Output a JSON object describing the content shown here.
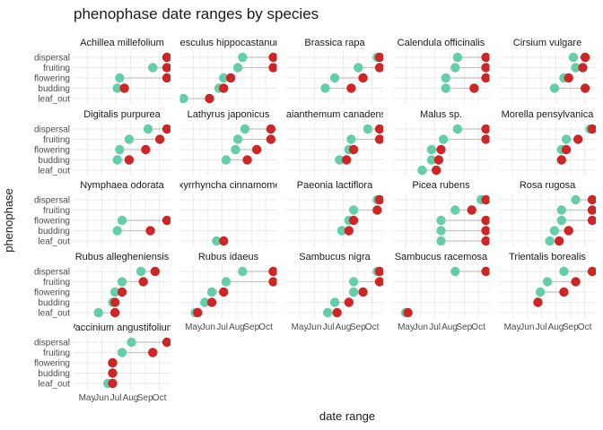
{
  "chart_data": {
    "type": "scatter",
    "subtype": "dumbbell-faceted",
    "title": "phenophase date ranges by species",
    "xlabel": "date range",
    "ylabel": "phenophase",
    "phenophases": [
      "leaf_out",
      "budding",
      "flowering",
      "fruiting",
      "dispersal"
    ],
    "x_ticks": [
      {
        "label": "May",
        "doy": 121
      },
      {
        "label": "Jun",
        "doy": 152
      },
      {
        "label": "Jul",
        "doy": 182
      },
      {
        "label": "Aug",
        "doy": 213
      },
      {
        "label": "Sep",
        "doy": 244
      },
      {
        "label": "Oct",
        "doy": 274
      }
    ],
    "xlim_doy": [
      100,
      290
    ],
    "x_units": "day of year",
    "series": [
      {
        "key": "start",
        "color": "#66cdaa"
      },
      {
        "key": "end",
        "color": "#cd2626"
      }
    ],
    "species": [
      {
        "name": "Achillea millefolium",
        "ranges": {
          "dispersal": [
            290,
            290
          ],
          "fruiting": [
            260,
            290
          ],
          "flowering": [
            190,
            290
          ],
          "budding": [
            185,
            200
          ]
        }
      },
      {
        "name": "Aesculus hippocastanum",
        "ranges": {
          "dispersal": [
            225,
            290
          ],
          "fruiting": [
            215,
            290
          ],
          "flowering": [
            185,
            200
          ],
          "budding": [
            175,
            185
          ],
          "leaf_out": [
            100,
            155
          ]
        }
      },
      {
        "name": "Brassica rapa",
        "ranges": {
          "dispersal": [
            285,
            290
          ],
          "fruiting": [
            245,
            290
          ],
          "flowering": [
            195,
            255
          ],
          "budding": [
            175,
            230
          ]
        }
      },
      {
        "name": "Calendula officinalis",
        "ranges": {
          "dispersal": [
            230,
            290
          ],
          "fruiting": [
            225,
            290
          ],
          "flowering": [
            205,
            290
          ],
          "budding": [
            205,
            265
          ]
        }
      },
      {
        "name": "Cirsium vulgare",
        "ranges": {
          "dispersal": [
            250,
            275
          ],
          "fruiting": [
            255,
            270
          ],
          "flowering": [
            230,
            240
          ],
          "budding": [
            210,
            275
          ]
        }
      },
      {
        "name": "Digitalis purpurea",
        "ranges": {
          "dispersal": [
            250,
            290
          ],
          "fruiting": [
            210,
            275
          ],
          "flowering": [
            190,
            245
          ],
          "budding": [
            185,
            210
          ]
        }
      },
      {
        "name": "Lathyrus japonicus",
        "ranges": {
          "dispersal": [
            230,
            285
          ],
          "fruiting": [
            215,
            285
          ],
          "flowering": [
            210,
            255
          ],
          "budding": [
            190,
            235
          ]
        }
      },
      {
        "name": "Maianthemum canadense",
        "ranges": {
          "dispersal": [
            265,
            290
          ],
          "fruiting": [
            230,
            290
          ],
          "flowering": [
            225,
            235
          ],
          "budding": [
            205,
            220
          ]
        }
      },
      {
        "name": "Malus sp.",
        "ranges": {
          "dispersal": [
            230,
            290
          ],
          "fruiting": [
            200,
            290
          ],
          "flowering": [
            175,
            195
          ],
          "budding": [
            175,
            190
          ],
          "leaf_out": [
            155,
            185
          ]
        }
      },
      {
        "name": "Morella pensylvanica",
        "ranges": {
          "dispersal": [
            285,
            290
          ],
          "fruiting": [
            235,
            260
          ],
          "flowering": [
            225,
            235
          ],
          "budding": [
            225,
            225
          ]
        }
      },
      {
        "name": "Nymphaea odorata",
        "ranges": {
          "flowering": [
            195,
            290
          ],
          "budding": [
            185,
            255
          ]
        }
      },
      {
        "name": "Oxyrrhyncha cinnamomea",
        "ranges": {
          "leaf_out": [
            170,
            185
          ]
        }
      },
      {
        "name": "Paeonia lactiflora",
        "ranges": {
          "dispersal": [
            285,
            290
          ],
          "fruiting": [
            235,
            285
          ],
          "flowering": [
            225,
            235
          ],
          "budding": [
            210,
            225
          ]
        }
      },
      {
        "name": "Picea rubens",
        "ranges": {
          "dispersal": [
            280,
            290
          ],
          "fruiting": [
            225,
            260
          ],
          "flowering": [
            195,
            290
          ],
          "budding": [
            195,
            290
          ],
          "leaf_out": [
            195,
            290
          ]
        }
      },
      {
        "name": "Rosa rugosa",
        "ranges": {
          "dispersal": [
            255,
            290
          ],
          "fruiting": [
            225,
            290
          ],
          "flowering": [
            225,
            290
          ],
          "budding": [
            210,
            240
          ],
          "leaf_out": [
            200,
            220
          ]
        }
      },
      {
        "name": "Rubus allegheniensis",
        "ranges": {
          "dispersal": [
            235,
            265
          ],
          "fruiting": [
            195,
            240
          ],
          "flowering": [
            180,
            195
          ],
          "budding": [
            175,
            180
          ],
          "leaf_out": [
            145,
            180
          ]
        }
      },
      {
        "name": "Rubus idaeus",
        "ranges": {
          "dispersal": [
            225,
            290
          ],
          "fruiting": [
            190,
            290
          ],
          "flowering": [
            160,
            185
          ],
          "budding": [
            145,
            160
          ],
          "leaf_out": [
            125,
            130
          ]
        }
      },
      {
        "name": "Sambucus nigra",
        "ranges": {
          "dispersal": [
            285,
            290
          ],
          "fruiting": [
            235,
            290
          ],
          "flowering": [
            235,
            255
          ],
          "budding": [
            195,
            225
          ],
          "leaf_out": [
            180,
            200
          ]
        }
      },
      {
        "name": "Sambucus racemosa",
        "ranges": {
          "dispersal": [
            225,
            290
          ],
          "leaf_out": [
            120,
            125
          ]
        }
      },
      {
        "name": "Trientalis borealis",
        "ranges": {
          "dispersal": [
            230,
            290
          ],
          "fruiting": [
            195,
            255
          ],
          "flowering": [
            180,
            230
          ],
          "budding": [
            175,
            175
          ]
        }
      },
      {
        "name": "Vaccinium angustifolium",
        "ranges": {
          "dispersal": [
            215,
            290
          ],
          "fruiting": [
            195,
            260
          ],
          "flowering": [
            175,
            175
          ],
          "budding": [
            175,
            175
          ],
          "leaf_out": [
            165,
            175
          ]
        }
      }
    ]
  }
}
